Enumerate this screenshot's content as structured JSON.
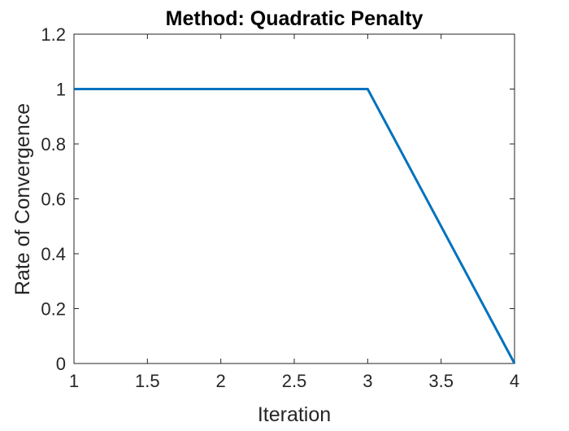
{
  "chart_data": {
    "type": "line",
    "title": "Method: Quadratic Penalty",
    "xlabel": "Iteration",
    "ylabel": "Rate of Convergence",
    "xlim": [
      1,
      4
    ],
    "ylim": [
      0,
      1.2
    ],
    "xticks": [
      "1",
      "1.5",
      "2",
      "2.5",
      "3",
      "3.5",
      "4"
    ],
    "yticks": [
      "0",
      "0.2",
      "0.4",
      "0.6",
      "0.8",
      "1",
      "1.2"
    ],
    "grid": false,
    "series": [
      {
        "x": [
          1,
          2,
          3,
          4
        ],
        "y": [
          1,
          1,
          1,
          0
        ],
        "color": "#0072BD"
      }
    ]
  }
}
